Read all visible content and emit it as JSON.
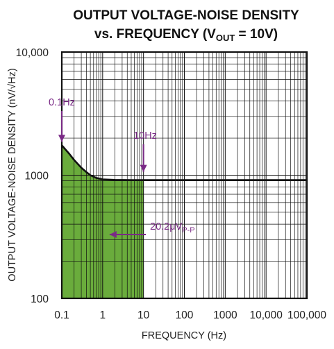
{
  "chart_data": {
    "type": "area",
    "title": {
      "line1": "OUTPUT VOLTAGE-NOISE DENSITY",
      "line2_prefix": "vs. FREQUENCY (V",
      "line2_sub": "OUT",
      "line2_suffix": " = 10V)"
    },
    "xlabel": "FREQUENCY (Hz)",
    "ylabel": "OUTPUT VOLTAGE-NOISE DENSITY (nV/√Hz)",
    "xscale": "log",
    "yscale": "log",
    "xlim": [
      0.1,
      100000
    ],
    "ylim": [
      100,
      10000
    ],
    "grid": true,
    "x_ticks": [
      {
        "value": 0.1,
        "label": "0.1"
      },
      {
        "value": 1,
        "label": "1"
      },
      {
        "value": 10,
        "label": "10"
      },
      {
        "value": 100,
        "label": "100"
      },
      {
        "value": 1000,
        "label": "1000"
      },
      {
        "value": 10000,
        "label": "10,000"
      },
      {
        "value": 100000,
        "label": "100,000"
      }
    ],
    "y_ticks": [
      {
        "value": 100,
        "label": "100"
      },
      {
        "value": 1000,
        "label": "1000"
      },
      {
        "value": 10000,
        "label": "10,000"
      }
    ],
    "series": [
      {
        "x": [
          0.1,
          0.15,
          0.2,
          0.3,
          0.4,
          0.5,
          0.7,
          1,
          2,
          5,
          10,
          100,
          1000,
          10000,
          100000
        ],
        "y": [
          1750,
          1500,
          1330,
          1150,
          1060,
          1000,
          950,
          925,
          915,
          912,
          912,
          912,
          912,
          912,
          912
        ],
        "color": "#111111"
      }
    ],
    "shaded_region": {
      "x_from": 0.1,
      "x_to": 10,
      "color": "#6aac3c"
    },
    "annotations": [
      {
        "text": "0.1Hz",
        "arrow_to": {
          "x": 0.1,
          "y": 1750
        },
        "color": "#7a2a86"
      },
      {
        "text": "10Hz",
        "arrow_to": {
          "x": 10,
          "y": 912
        },
        "color": "#7a2a86"
      },
      {
        "text_prefix": "20.2μV",
        "text_sub": "P-P",
        "arrow_to": {
          "x": 1,
          "y": 330
        },
        "color": "#7a2a86"
      }
    ],
    "colors": {
      "annotation": "#7a2a86",
      "fill": "#6aac3c",
      "grid": "#111111"
    }
  }
}
